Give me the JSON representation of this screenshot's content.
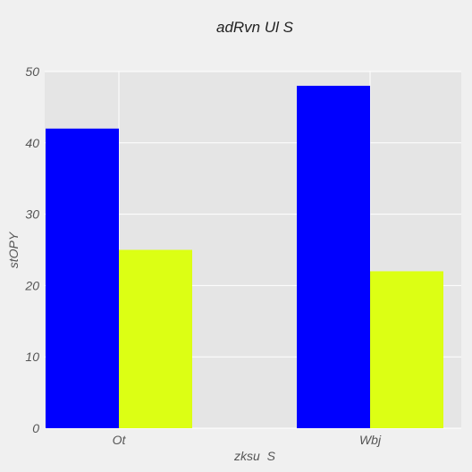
{
  "chart_data": {
    "type": "bar",
    "title": "adRvn Ul S",
    "xlabel": "zksu  S",
    "ylabel": "stOPY",
    "categories": [
      "Ot",
      "Wbj"
    ],
    "series": [
      {
        "values": [
          42,
          48
        ],
        "color": "#0000ff"
      },
      {
        "values": [
          25,
          22
        ],
        "color": "#dcff14"
      }
    ],
    "ylim": [
      0,
      50
    ],
    "yticks": [
      0,
      10,
      20,
      30,
      40,
      50
    ],
    "grid": true,
    "legend": "none",
    "background": "#f0f0f0",
    "plot_background": "#e5e5e5",
    "grid_color": "#ffffff"
  }
}
